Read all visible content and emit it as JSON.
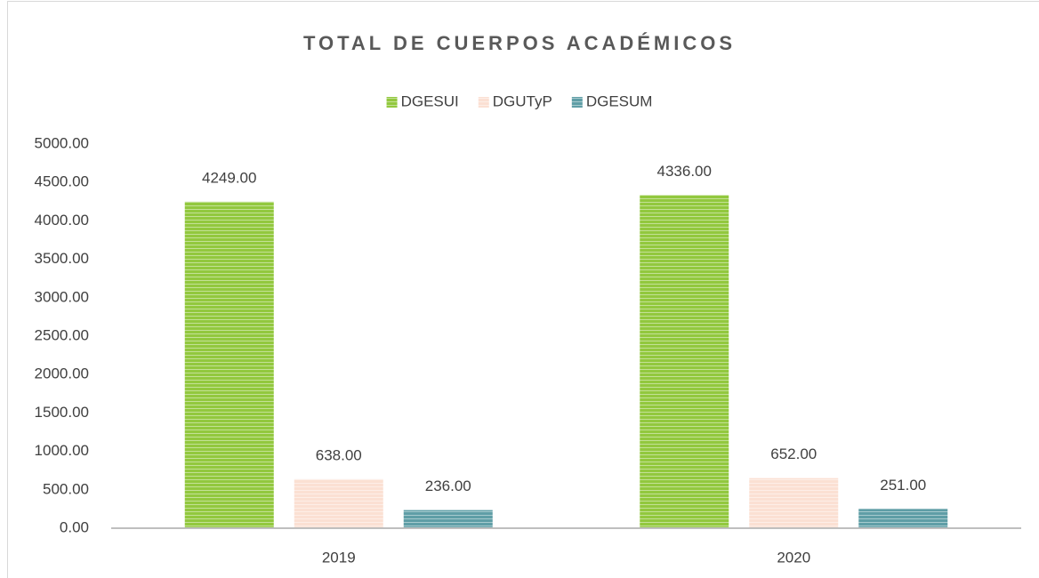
{
  "chart_data": {
    "type": "bar",
    "title": "TOTAL DE CUERPOS ACADÉMICOS",
    "categories": [
      "2019",
      "2020"
    ],
    "series": [
      {
        "name": "DGESUI",
        "color": "#92c83e",
        "values": [
          4249,
          4336
        ],
        "value_labels": [
          "4249.00",
          "4336.00"
        ]
      },
      {
        "name": "DGUTyP",
        "color": "#fbe0d3",
        "values": [
          638,
          652
        ],
        "value_labels": [
          "638.00",
          "652.00"
        ]
      },
      {
        "name": "DGESUM",
        "color": "#5f9ea6",
        "values": [
          236,
          251
        ],
        "value_labels": [
          "236.00",
          "251.00"
        ]
      }
    ],
    "ylim": [
      0,
      5000
    ],
    "yticks": [
      {
        "value": 0,
        "label": "0.00"
      },
      {
        "value": 500,
        "label": "500.00"
      },
      {
        "value": 1000,
        "label": "1000.00"
      },
      {
        "value": 1500,
        "label": "1500.00"
      },
      {
        "value": 2000,
        "label": "2000.00"
      },
      {
        "value": 2500,
        "label": "2500.00"
      },
      {
        "value": 3000,
        "label": "3000.00"
      },
      {
        "value": 3500,
        "label": "3500.00"
      },
      {
        "value": 4000,
        "label": "4000.00"
      },
      {
        "value": 4500,
        "label": "4500.00"
      },
      {
        "value": 5000,
        "label": "5000.00"
      }
    ],
    "grid": false,
    "legend": "top"
  }
}
